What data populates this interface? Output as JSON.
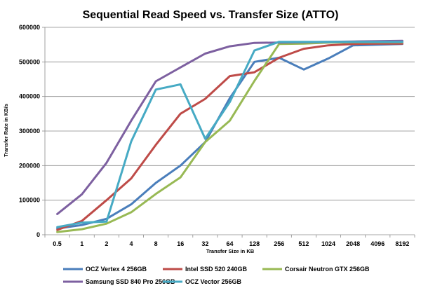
{
  "chart_data": {
    "type": "line",
    "title": "Sequential Read Speed vs. Transfer Size (ATTO)",
    "xlabel": "Transfer Size in KB",
    "ylabel": "Transfer Rate in KB/s",
    "ylim": [
      0,
      600000
    ],
    "yticks": [
      0,
      100000,
      200000,
      300000,
      400000,
      500000,
      600000
    ],
    "ytick_labels": [
      "0",
      "100000",
      "200000",
      "300000",
      "400000",
      "500000",
      "600000"
    ],
    "categories": [
      "0.5",
      "1",
      "2",
      "4",
      "8",
      "16",
      "32",
      "64",
      "128",
      "256",
      "512",
      "1024",
      "2048",
      "4096",
      "8192"
    ],
    "grid": true,
    "legend_position": "bottom",
    "series": [
      {
        "name": "OCZ Vertex 4 256GB",
        "color": "#4a7ebb",
        "values": [
          18000,
          28000,
          46000,
          88000,
          150000,
          200000,
          268000,
          395000,
          500000,
          512000,
          478000,
          510000,
          548000,
          550000,
          552000
        ]
      },
      {
        "name": "Intel SSD 520 240GB",
        "color": "#be4b48",
        "values": [
          14000,
          40000,
          100000,
          163000,
          260000,
          350000,
          393000,
          459000,
          470000,
          512000,
          538000,
          548000,
          552000,
          553000,
          553000
        ]
      },
      {
        "name": "Corsair Neutron GTX 256GB",
        "color": "#98b954",
        "values": [
          8000,
          16000,
          32000,
          65000,
          118000,
          166000,
          268000,
          330000,
          445000,
          552000,
          553000,
          556000,
          557000,
          557000,
          557000
        ]
      },
      {
        "name": "Samsung SSD 840 Pro 256GB",
        "color": "#7d60a0",
        "values": [
          60000,
          117000,
          208000,
          330000,
          444000,
          484000,
          524000,
          545000,
          555000,
          556000,
          557000,
          558000,
          559000,
          560000,
          561000
        ]
      },
      {
        "name": "OCZ Vector 256GB",
        "color": "#46aac4",
        "values": [
          22000,
          35000,
          38000,
          270000,
          420000,
          435000,
          278000,
          384000,
          533000,
          558000,
          558000,
          558000,
          558000,
          558000,
          558000
        ]
      }
    ]
  }
}
